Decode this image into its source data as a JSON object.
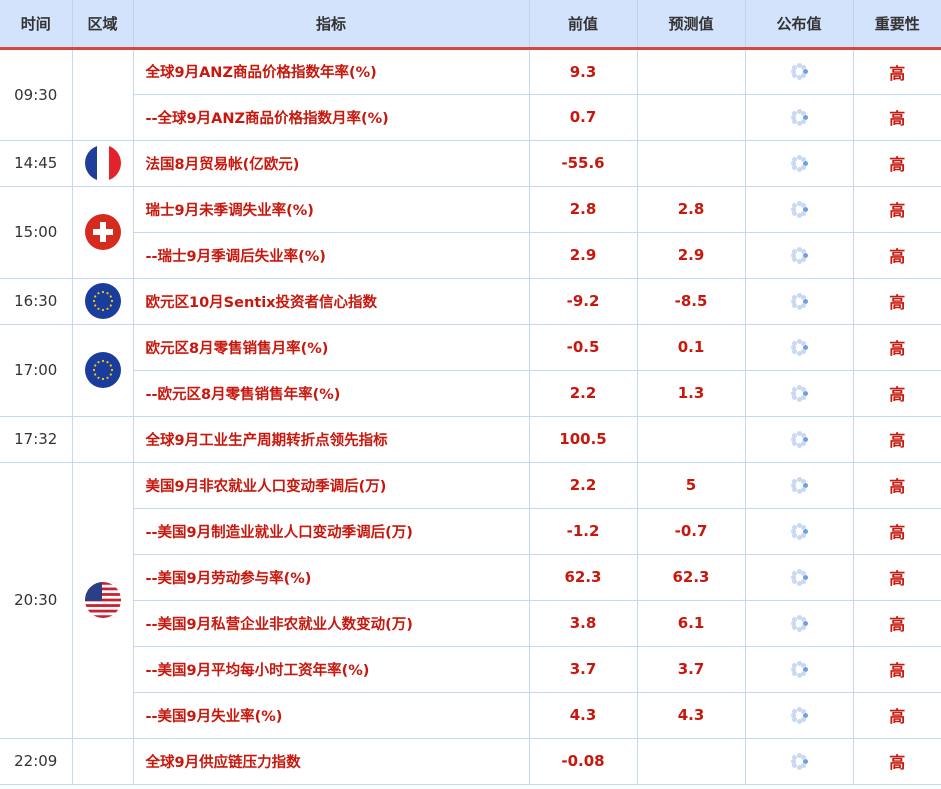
{
  "headers": {
    "time": "时间",
    "region": "区域",
    "indicator": "指标",
    "previous": "前值",
    "forecast": "预测值",
    "actual": "公布值",
    "importance": "重要性"
  },
  "colors": {
    "header_bg": "#d3e3fb",
    "accent_line": "#d34a3c",
    "text_red": "#c8170d"
  },
  "groups": [
    {
      "time": "09:30",
      "flag": "",
      "rows": [
        {
          "indicator": "全球9月ANZ商品价格指数年率(%)",
          "previous": "9.3",
          "forecast": "",
          "importance": "高"
        },
        {
          "indicator": "--全球9月ANZ商品价格指数月率(%)",
          "previous": "0.7",
          "forecast": "",
          "importance": "高"
        }
      ]
    },
    {
      "time": "14:45",
      "flag": "france-flag-icon",
      "rows": [
        {
          "indicator": "法国8月贸易帐(亿欧元)",
          "previous": "-55.6",
          "forecast": "",
          "importance": "高"
        }
      ]
    },
    {
      "time": "15:00",
      "flag": "switzerland-flag-icon",
      "rows": [
        {
          "indicator": "瑞士9月未季调失业率(%)",
          "previous": "2.8",
          "forecast": "2.8",
          "importance": "高"
        },
        {
          "indicator": "--瑞士9月季调后失业率(%)",
          "previous": "2.9",
          "forecast": "2.9",
          "importance": "高"
        }
      ]
    },
    {
      "time": "16:30",
      "flag": "eu-flag-icon",
      "rows": [
        {
          "indicator": "欧元区10月Sentix投资者信心指数",
          "previous": "-9.2",
          "forecast": "-8.5",
          "importance": "高"
        }
      ]
    },
    {
      "time": "17:00",
      "flag": "eu-flag-icon",
      "rows": [
        {
          "indicator": "欧元区8月零售销售月率(%)",
          "previous": "-0.5",
          "forecast": "0.1",
          "importance": "高"
        },
        {
          "indicator": "--欧元区8月零售销售年率(%)",
          "previous": "2.2",
          "forecast": "1.3",
          "importance": "高"
        }
      ]
    },
    {
      "time": "17:32",
      "flag": "",
      "rows": [
        {
          "indicator": "全球9月工业生产周期转折点领先指标",
          "previous": "100.5",
          "forecast": "",
          "importance": "高"
        }
      ]
    },
    {
      "time": "20:30",
      "flag": "usa-flag-icon",
      "rows": [
        {
          "indicator": "美国9月非农就业人口变动季调后(万)",
          "previous": "2.2",
          "forecast": "5",
          "importance": "高"
        },
        {
          "indicator": "--美国9月制造业就业人口变动季调后(万)",
          "previous": "-1.2",
          "forecast": "-0.7",
          "importance": "高"
        },
        {
          "indicator": "--美国9月劳动参与率(%)",
          "previous": "62.3",
          "forecast": "62.3",
          "importance": "高"
        },
        {
          "indicator": "--美国9月私营企业非农就业人数变动(万)",
          "previous": "3.8",
          "forecast": "6.1",
          "importance": "高"
        },
        {
          "indicator": "--美国9月平均每小时工资年率(%)",
          "previous": "3.7",
          "forecast": "3.7",
          "importance": "高"
        },
        {
          "indicator": "--美国9月失业率(%)",
          "previous": "4.3",
          "forecast": "4.3",
          "importance": "高"
        }
      ]
    },
    {
      "time": "22:09",
      "flag": "",
      "rows": [
        {
          "indicator": "全球9月供应链压力指数",
          "previous": "-0.08",
          "forecast": "",
          "importance": "高"
        }
      ]
    }
  ]
}
